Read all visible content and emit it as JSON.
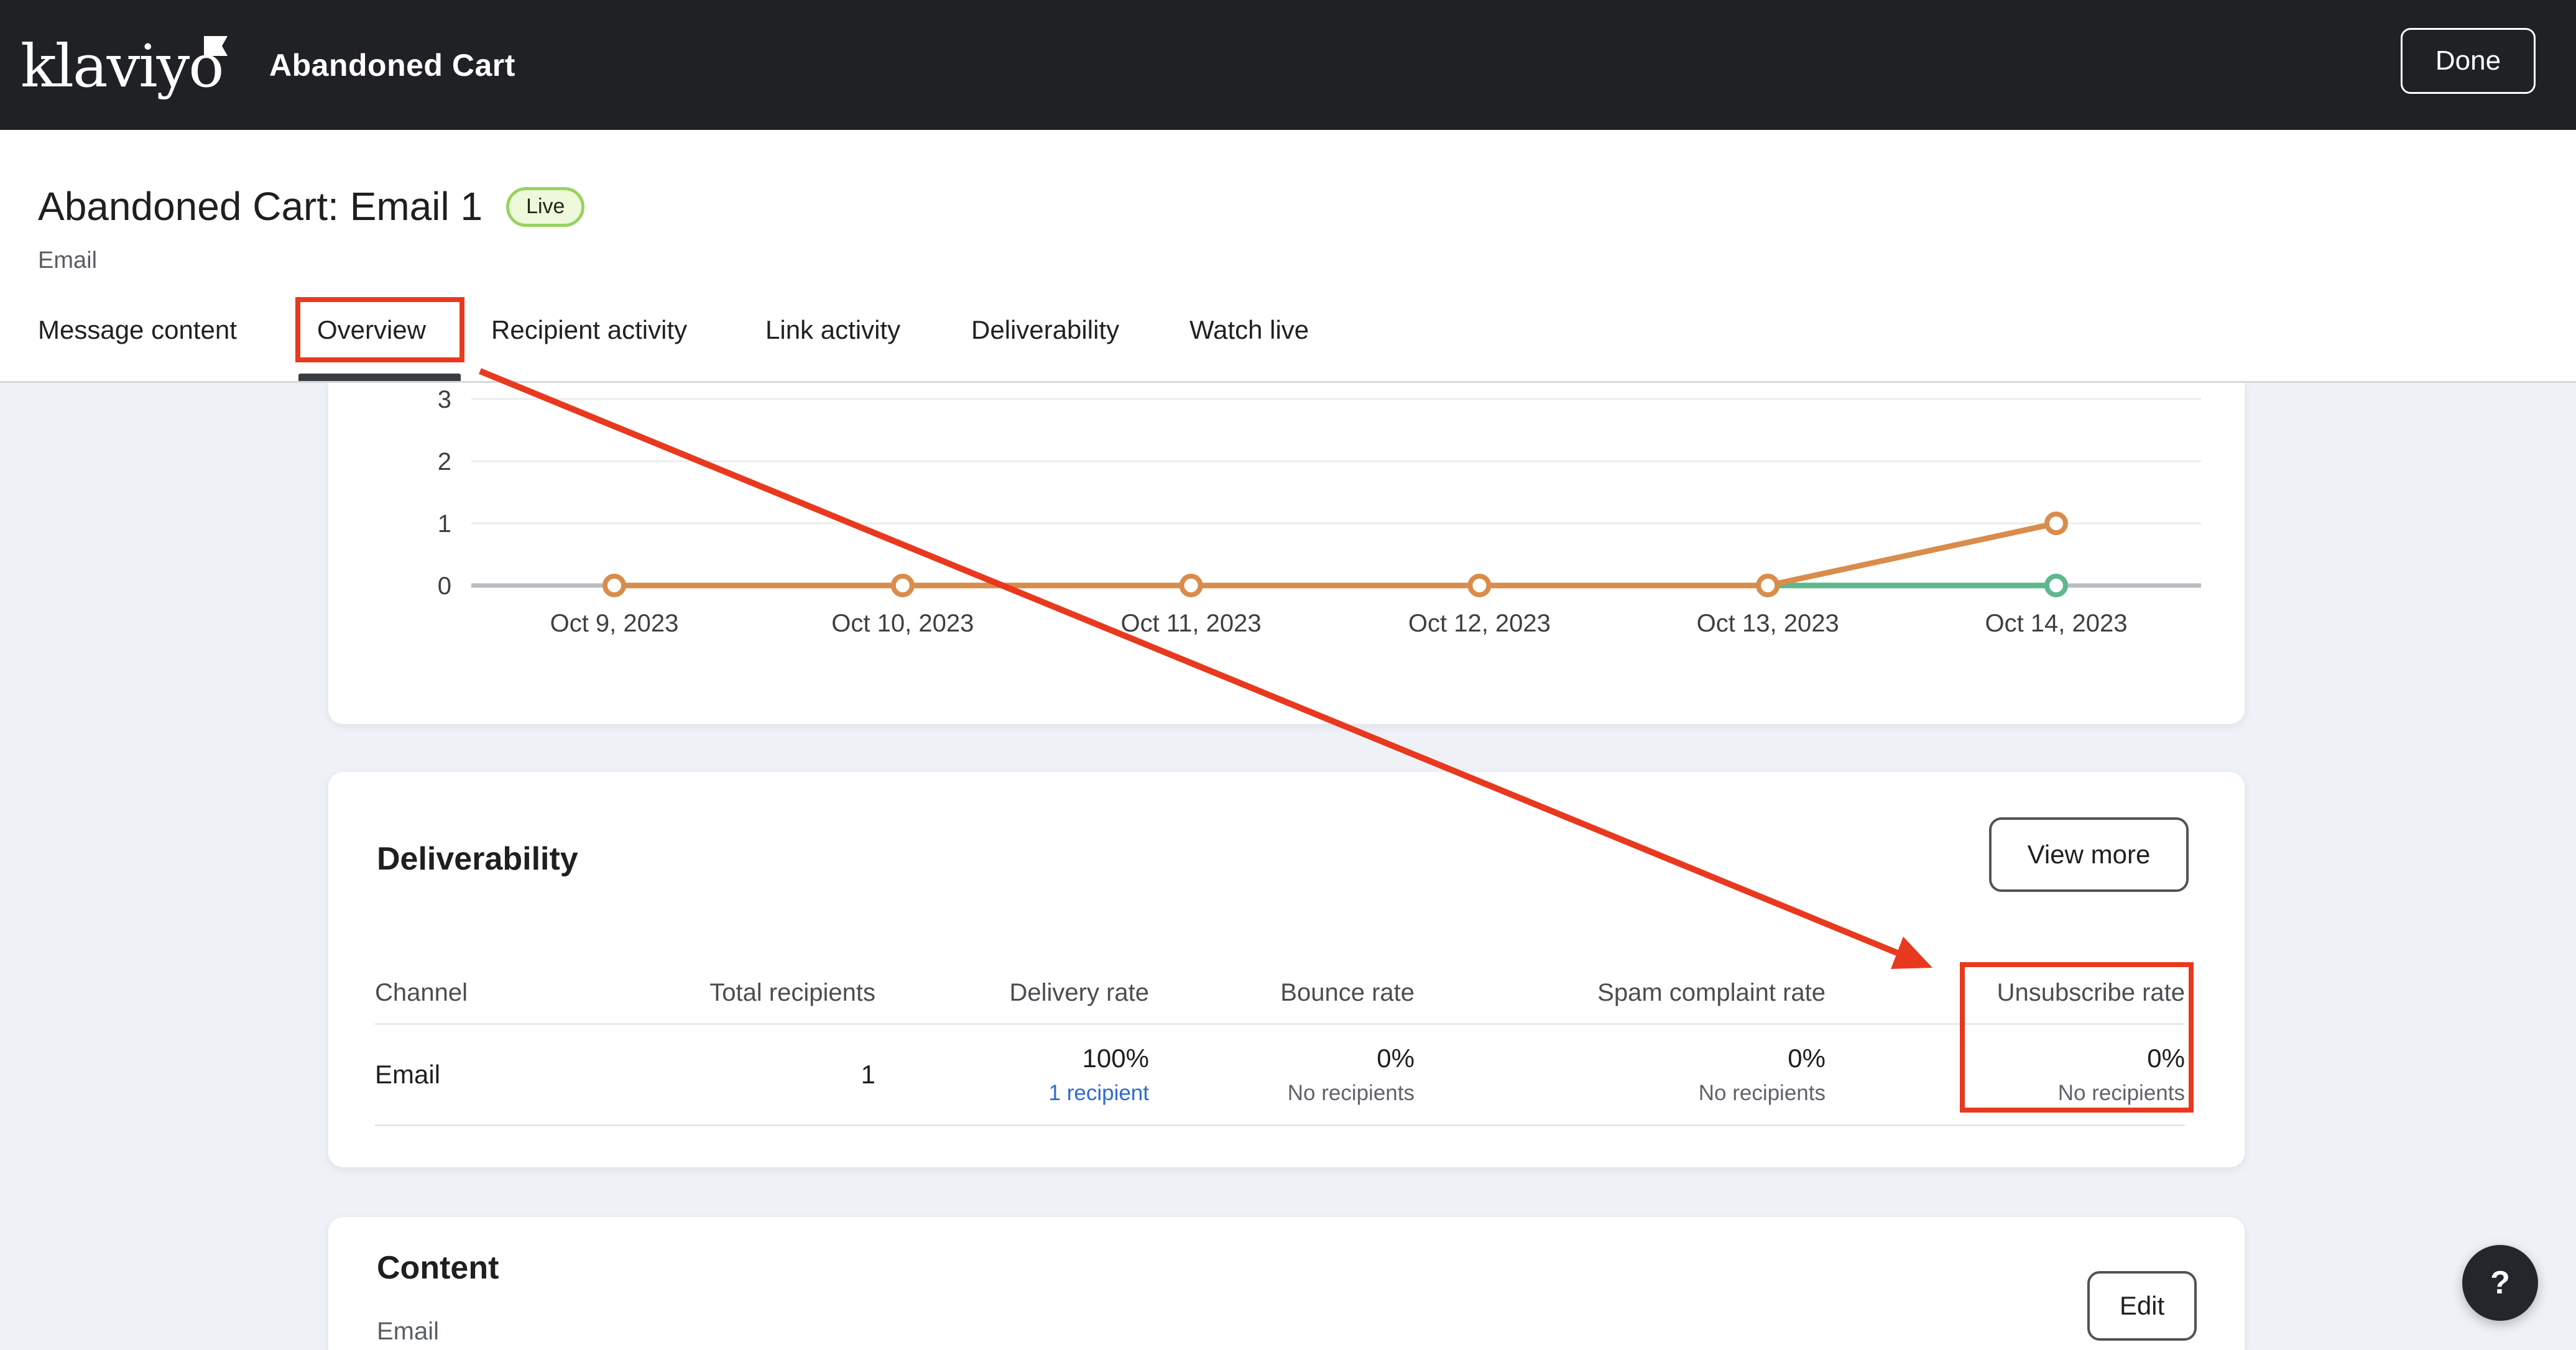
{
  "header": {
    "logo_text": "klaviyo",
    "flow_title": "Abandoned Cart",
    "done_label": "Done"
  },
  "page": {
    "title": "Abandoned Cart: Email 1",
    "status_badge": "Live",
    "channel": "Email"
  },
  "tabs": [
    {
      "label": "Message content",
      "active": false
    },
    {
      "label": "Overview",
      "active": true
    },
    {
      "label": "Recipient activity",
      "active": false
    },
    {
      "label": "Link activity",
      "active": false
    },
    {
      "label": "Deliverability",
      "active": false
    },
    {
      "label": "Watch live",
      "active": false
    }
  ],
  "chart_data": {
    "type": "line",
    "x": [
      "Oct 9, 2023",
      "Oct 10, 2023",
      "Oct 11, 2023",
      "Oct 12, 2023",
      "Oct 13, 2023",
      "Oct 14, 2023"
    ],
    "yticks": [
      0,
      1,
      2,
      3
    ],
    "ylim": [
      0,
      3.3
    ],
    "grid": true,
    "grid_color": "#ececec",
    "axis_color": "#b9bdc1",
    "tick_color": "#3c4043",
    "series": [
      {
        "name": "teal-series",
        "color": "#5eb78e",
        "values": [
          null,
          null,
          null,
          null,
          0,
          0
        ]
      },
      {
        "name": "orange-series",
        "color": "#d98c4b",
        "values": [
          0,
          0,
          0,
          0,
          0,
          1
        ]
      }
    ]
  },
  "deliverability": {
    "heading": "Deliverability",
    "view_more_label": "View more",
    "table": {
      "headers": [
        "Channel",
        "Total recipients",
        "Delivery rate",
        "Bounce rate",
        "Spam complaint rate",
        "Unsubscribe rate"
      ],
      "row": {
        "channel": "Email",
        "total": "1",
        "delivery_rate": "100%",
        "delivery_sub": "1 recipient",
        "bounce_rate": "0%",
        "bounce_sub": "No recipients",
        "spam_rate": "0%",
        "spam_sub": "No recipients",
        "unsubscribe_rate": "0%",
        "unsubscribe_sub": "No recipients"
      }
    }
  },
  "content_section": {
    "heading": "Content",
    "channel": "Email",
    "edit_label": "Edit"
  },
  "help": {
    "label": "?"
  },
  "annotations": {
    "tab_highlight": "Overview",
    "column_highlight": "Unsubscribe rate",
    "color": "#e8391f"
  },
  "colors": {
    "header_bg": "#1f2124",
    "page_bg": "#eef1f6",
    "accent_red": "#e8391f",
    "orange_line": "#d98c4b",
    "teal_line": "#5eb78e",
    "link_blue": "#2e6bd3",
    "badge_bg": "#eef8da",
    "badge_border": "#96d35f"
  }
}
